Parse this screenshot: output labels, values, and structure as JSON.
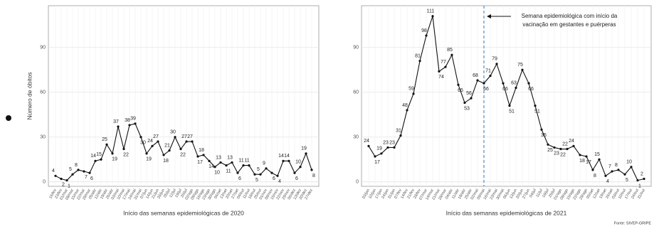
{
  "chart_data": [
    {
      "type": "line",
      "y_label": "Número de óbitos",
      "x_label": "Início das semanas epidemiológicas de 2020",
      "categories": [
        "16/fev",
        "23/fev",
        "01/mar",
        "08/mar",
        "15/mar",
        "22/mar",
        "29/mar",
        "05/abr",
        "12/abr",
        "19/abr",
        "26/abr",
        "03/mai",
        "10/mai",
        "17/mai",
        "24/mai",
        "31/mai",
        "07/jun",
        "14/jun",
        "21/jun",
        "28/jun",
        "05/jul",
        "12/jul",
        "19/jul",
        "26/jul",
        "02/ago",
        "09/ago",
        "16/ago",
        "23/ago",
        "30/ago",
        "06/set",
        "13/set",
        "20/set",
        "27/set",
        "04/out",
        "11/out",
        "18/out",
        "25/out",
        "01/nov",
        "08/nov",
        "15/nov",
        "22/nov",
        "29/nov",
        "06/dez",
        "13/dez",
        "20/dez",
        "27/dez"
      ],
      "values": [
        4,
        2,
        1,
        5,
        8,
        7,
        6,
        14,
        15,
        25,
        19,
        37,
        22,
        38,
        39,
        30,
        19,
        24,
        27,
        18,
        21,
        30,
        22,
        27,
        27,
        17,
        18,
        14,
        10,
        13,
        11,
        13,
        6,
        11,
        11,
        5,
        5,
        9,
        6,
        4,
        14,
        14,
        6,
        10,
        19,
        8
      ],
      "color": "#111111",
      "ylim": [
        -3,
        118
      ],
      "yticks": [
        0,
        30,
        60,
        90
      ],
      "grid": true
    },
    {
      "type": "line",
      "x_label": "Início das semanas epidemiológicas de 2021",
      "categories": [
        "03/jan",
        "10/jan",
        "17/jan",
        "24/jan",
        "31/jan",
        "07/fev",
        "14/fev",
        "21/fev",
        "28/fev",
        "07/mar",
        "14/mar",
        "21/mar",
        "28/mar",
        "04/abr",
        "11/abr",
        "18/abr",
        "25/abr",
        "02/mai",
        "09/mai",
        "16/mai",
        "23/mai",
        "30/mai",
        "06/jun",
        "13/jun",
        "20/jun",
        "27/jun",
        "04/jul",
        "11/jul",
        "18/jul",
        "25/jul",
        "01/ago",
        "08/ago",
        "15/ago",
        "22/ago",
        "29/ago",
        "05/set",
        "12/set",
        "19/set",
        "26/set",
        "03/out",
        "10/out",
        "17/out",
        "24/out",
        "31/out"
      ],
      "values": [
        24,
        17,
        19,
        23,
        23,
        31,
        48,
        59,
        81,
        98,
        111,
        74,
        77,
        85,
        65,
        53,
        56,
        68,
        66,
        71,
        79,
        66,
        51,
        63,
        75,
        66,
        51,
        35,
        25,
        23,
        22,
        22,
        24,
        18,
        17,
        8,
        15,
        4,
        7,
        8,
        5,
        10,
        1,
        2
      ],
      "color": "#111111",
      "ylim": [
        -3,
        118
      ],
      "yticks": [
        0,
        30,
        60,
        90
      ],
      "grid": true,
      "vline": {
        "x": "09/mai",
        "color": "#4a90c8",
        "text": [
          "Semana epidemiológica com início da",
          "vacinação em gestantes e puérperas"
        ]
      },
      "source": "Fonte: SIVEP-GRIPE"
    }
  ]
}
